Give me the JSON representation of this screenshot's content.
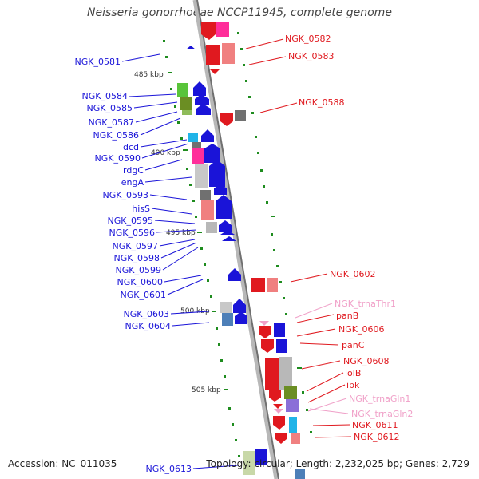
{
  "title": "Neisseria gonorrhoeae NCCP11945, complete genome",
  "footer": {
    "accession": "Accession: NC_011035",
    "summary": "Topology: circular; Length: 2,232,025 bp; Genes: 2,729"
  },
  "scale_labels": [
    "485 kbp",
    "490 kbp",
    "495 kbp",
    "500 kbp",
    "505 kbp"
  ],
  "left_labels": [
    "NGK_0581",
    "NGK_0584",
    "NGK_0585",
    "NGK_0587",
    "NGK_0586",
    "dcd",
    "NGK_0590",
    "rdgC",
    "engA",
    "NGK_0593",
    "hisS",
    "NGK_0595",
    "NGK_0596",
    "NGK_0597",
    "NGK_0598",
    "NGK_0599",
    "NGK_0600",
    "NGK_0601",
    "NGK_0603",
    "NGK_0604",
    "NGK_0613"
  ],
  "right_labels": [
    "NGK_0582",
    "NGK_0583",
    "NGK_0588",
    "NGK_0602",
    "NGK_trnaThr1",
    "panB",
    "NGK_0606",
    "panC",
    "NGK_0608",
    "lolB",
    "ipk",
    "NGK_trnaGln1",
    "NGK_trnaGln2",
    "NGK_0611",
    "NGK_0612"
  ],
  "colors": {
    "forward_strand": "#e0191f",
    "reverse_strand": "#1a14d8",
    "trna": "#f0a0c8",
    "backbone": "#9a9a9a",
    "ticks": "#1e8c1e"
  }
}
